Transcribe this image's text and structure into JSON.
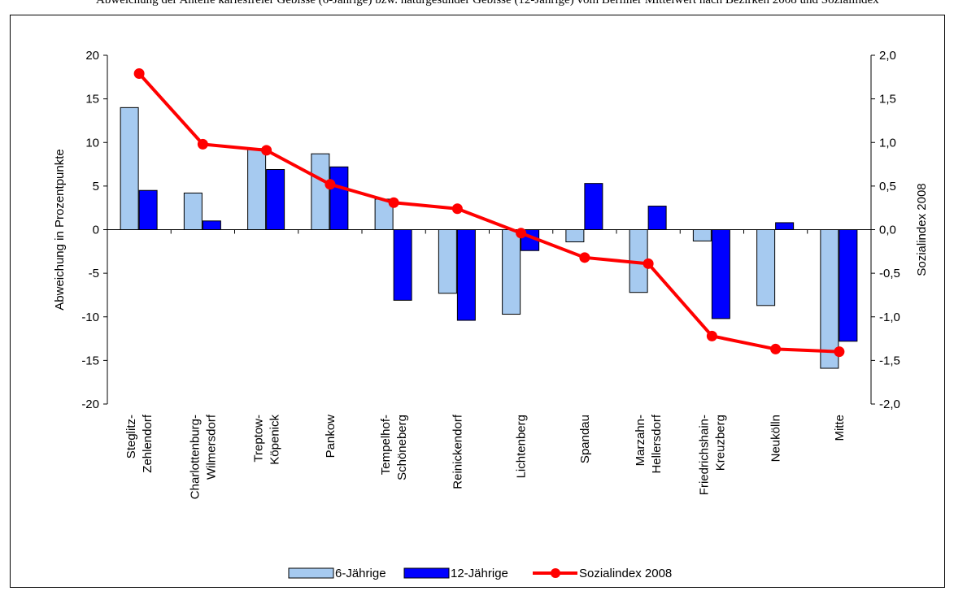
{
  "caption": "Abweichung der Anteile kariesfreier Gebisse (6-Jährige) bzw. naturgesunder Gebisse (12-Jährige) vom Berliner Mittelwert nach Bezirken 2008 und Sozialindex",
  "chart_data": {
    "type": "bar",
    "categories": [
      [
        "Steglitz-",
        "Zehlendorf"
      ],
      [
        "Charlottenburg-",
        "Wilmersdorf"
      ],
      [
        "Treptow-",
        "Köpenick"
      ],
      [
        "Pankow"
      ],
      [
        "Tempelhof-",
        "Schöneberg"
      ],
      [
        "Reinickendorf"
      ],
      [
        "Lichtenberg"
      ],
      [
        "Spandau"
      ],
      [
        "Marzahn-",
        "Hellersdorf"
      ],
      [
        "Friedrichshain-",
        "Kreuzberg"
      ],
      [
        "Neukölln"
      ],
      [
        "Mitte"
      ]
    ],
    "series": [
      {
        "name": "6-Jährige",
        "type": "bar",
        "axis": "left",
        "color": "#a6caf0",
        "values": [
          14.0,
          4.2,
          9.3,
          8.7,
          3.5,
          -7.3,
          -9.7,
          -1.4,
          -7.2,
          -1.3,
          -8.7,
          -15.9
        ]
      },
      {
        "name": "12-Jährige",
        "type": "bar",
        "axis": "left",
        "color": "#0000ff",
        "values": [
          4.5,
          1.0,
          6.9,
          7.2,
          -8.1,
          -10.4,
          -2.4,
          5.3,
          2.7,
          -10.2,
          0.8,
          -12.8
        ]
      },
      {
        "name": "Sozialindex 2008",
        "type": "line",
        "axis": "right",
        "color": "#ff0000",
        "values": [
          1.79,
          0.98,
          0.91,
          0.52,
          0.31,
          0.24,
          -0.04,
          -0.32,
          -0.39,
          -1.22,
          -1.37,
          -1.4
        ]
      }
    ],
    "ylabel": "Abweichung in Prozentpunkte",
    "ylim": [
      -20,
      20
    ],
    "yticks": [
      "20",
      "15",
      "10",
      "5",
      "0",
      "-5",
      "-10",
      "-15",
      "-20"
    ],
    "y2label": "Sozialindex 2008",
    "y2lim": [
      -2.0,
      2.0
    ],
    "y2ticks": [
      "2,0",
      "1,5",
      "1,0",
      "0,5",
      "0,0",
      "-0,5",
      "-1,0",
      "-1,5",
      "-2,0"
    ],
    "grid": false,
    "legend": "bottom"
  }
}
